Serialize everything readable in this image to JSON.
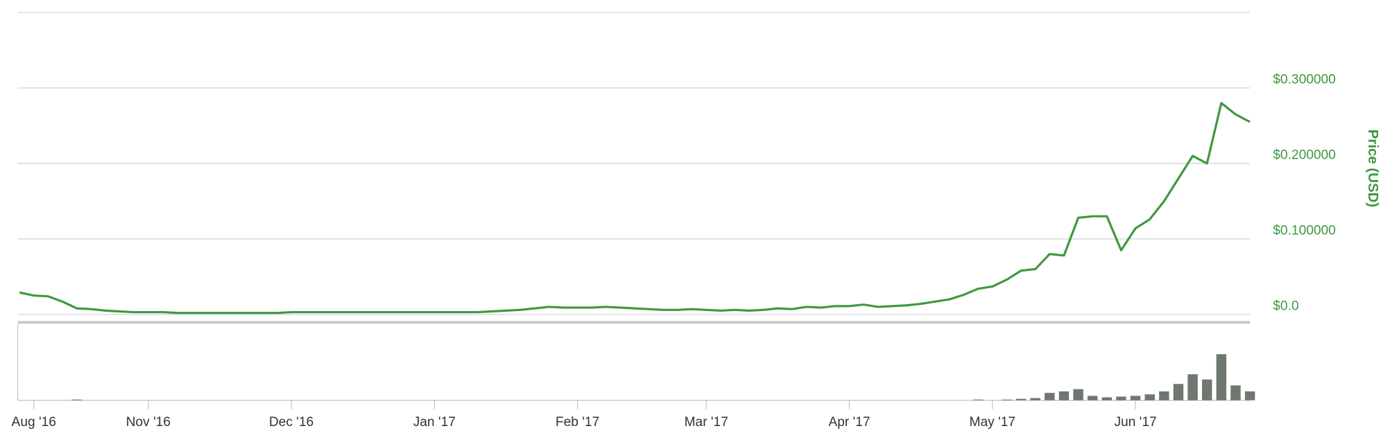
{
  "chart_data": [
    {
      "type": "line",
      "y_label": "Price (USD)",
      "color": "#3f983f",
      "categories": [
        null,
        "Aug '16",
        null,
        null,
        null,
        null,
        null,
        null,
        null,
        "Nov '16",
        null,
        null,
        null,
        null,
        null,
        null,
        null,
        null,
        null,
        "Dec '16",
        null,
        null,
        null,
        null,
        null,
        null,
        null,
        null,
        null,
        "Jan '17",
        null,
        null,
        null,
        null,
        null,
        null,
        null,
        null,
        null,
        "Feb '17",
        null,
        null,
        null,
        null,
        null,
        null,
        null,
        null,
        "Mar '17",
        null,
        null,
        null,
        null,
        null,
        null,
        null,
        null,
        null,
        "Apr '17",
        null,
        null,
        null,
        null,
        null,
        null,
        null,
        null,
        null,
        "May '17",
        null,
        null,
        null,
        null,
        null,
        null,
        null,
        null,
        null,
        "Jun '17",
        null,
        null,
        null,
        null,
        null,
        null,
        null,
        null
      ],
      "values": [
        0.029,
        0.025,
        0.024,
        0.017,
        0.008,
        0.007,
        0.005,
        0.004,
        0.003,
        0.003,
        0.003,
        0.002,
        0.002,
        0.002,
        0.002,
        0.002,
        0.002,
        0.002,
        0.002,
        0.003,
        0.003,
        0.003,
        0.003,
        0.003,
        0.003,
        0.003,
        0.003,
        0.003,
        0.003,
        0.003,
        0.003,
        0.003,
        0.003,
        0.004,
        0.005,
        0.006,
        0.008,
        0.01,
        0.009,
        0.009,
        0.009,
        0.01,
        0.009,
        0.008,
        0.007,
        0.006,
        0.006,
        0.007,
        0.006,
        0.005,
        0.006,
        0.005,
        0.006,
        0.008,
        0.007,
        0.01,
        0.009,
        0.011,
        0.011,
        0.013,
        0.01,
        0.011,
        0.012,
        0.014,
        0.017,
        0.02,
        0.026,
        0.034,
        0.037,
        0.046,
        0.058,
        0.06,
        0.08,
        0.078,
        0.128,
        0.13,
        0.13,
        0.085,
        0.114,
        0.126,
        0.15,
        0.18,
        0.21,
        0.2,
        0.28,
        0.265,
        0.255
      ],
      "ylim": [
        0,
        0.4
      ],
      "yticks": [
        {
          "value": 0,
          "label": "$0.0"
        },
        {
          "value": 0.1,
          "label": "$0.100000"
        },
        {
          "value": 0.2,
          "label": "$0.200000"
        },
        {
          "value": 0.3,
          "label": "$0.300000"
        }
      ],
      "grid": true
    },
    {
      "type": "bar",
      "color": "#6f786f",
      "values": [
        0,
        0,
        0,
        0,
        1,
        0,
        0,
        0,
        0,
        0,
        0,
        0,
        0,
        0,
        0,
        0,
        0,
        0,
        0,
        0,
        0,
        0,
        0,
        0,
        0,
        0,
        0,
        0,
        0,
        0,
        0,
        0,
        0,
        0,
        0,
        0,
        0,
        0,
        0,
        0,
        0,
        0,
        0,
        0,
        0,
        0,
        0,
        0,
        0,
        0,
        0,
        0,
        0,
        0,
        0,
        0,
        0,
        0,
        0,
        0,
        0,
        0,
        0,
        0,
        0,
        0,
        0,
        1,
        0,
        1,
        2,
        3,
        10,
        12,
        15,
        6,
        4,
        5,
        6,
        8,
        12,
        22,
        35,
        28,
        62,
        20,
        12
      ],
      "ylim": [
        0,
        100
      ]
    }
  ]
}
